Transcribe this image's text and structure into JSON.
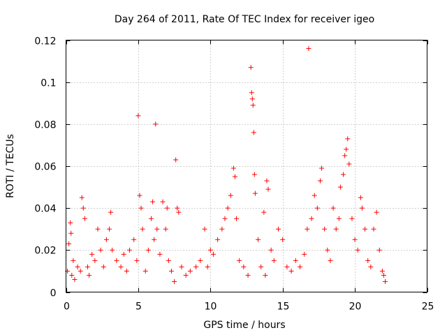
{
  "chart_data": {
    "type": "scatter",
    "title": "Day 264 of 2011, Rate Of TEC Index for receiver igeo",
    "xlabel": "GPS time / hours",
    "ylabel": "ROTI / TECUs",
    "xlim": [
      0,
      25
    ],
    "ylim": [
      0,
      0.12
    ],
    "x_ticks": [
      0,
      5,
      10,
      15,
      20,
      25
    ],
    "x_tick_labels": [
      "0",
      "5",
      "10",
      "15",
      "20",
      "25"
    ],
    "y_ticks": [
      0,
      0.02,
      0.04,
      0.06,
      0.08,
      0.1,
      0.12
    ],
    "y_tick_labels": [
      "0",
      "0.02",
      "0.04",
      "0.06",
      "0.08",
      "0.1",
      "0.12"
    ],
    "grid": true,
    "marker": "+",
    "marker_color": "#ff0000",
    "series": [
      {
        "name": "ROTI",
        "points": [
          [
            0.1,
            0.01
          ],
          [
            0.2,
            0.023
          ],
          [
            0.3,
            0.033
          ],
          [
            0.35,
            0.028
          ],
          [
            0.4,
            0.008
          ],
          [
            0.5,
            0.015
          ],
          [
            0.6,
            0.006
          ],
          [
            0.8,
            0.012
          ],
          [
            1.0,
            0.01
          ],
          [
            1.1,
            0.045
          ],
          [
            1.2,
            0.04
          ],
          [
            1.3,
            0.035
          ],
          [
            1.5,
            0.012
          ],
          [
            1.6,
            0.008
          ],
          [
            1.8,
            0.018
          ],
          [
            2.0,
            0.015
          ],
          [
            2.2,
            0.03
          ],
          [
            2.4,
            0.02
          ],
          [
            2.6,
            0.012
          ],
          [
            2.8,
            0.025
          ],
          [
            3.0,
            0.03
          ],
          [
            3.1,
            0.038
          ],
          [
            3.2,
            0.02
          ],
          [
            3.5,
            0.015
          ],
          [
            3.8,
            0.012
          ],
          [
            4.0,
            0.018
          ],
          [
            4.2,
            0.01
          ],
          [
            4.4,
            0.02
          ],
          [
            4.7,
            0.025
          ],
          [
            4.9,
            0.015
          ],
          [
            5.0,
            0.084
          ],
          [
            5.1,
            0.046
          ],
          [
            5.2,
            0.04
          ],
          [
            5.3,
            0.03
          ],
          [
            5.5,
            0.01
          ],
          [
            5.7,
            0.02
          ],
          [
            5.9,
            0.035
          ],
          [
            6.0,
            0.043
          ],
          [
            6.1,
            0.025
          ],
          [
            6.2,
            0.08
          ],
          [
            6.3,
            0.03
          ],
          [
            6.5,
            0.018
          ],
          [
            6.7,
            0.043
          ],
          [
            6.9,
            0.03
          ],
          [
            7.0,
            0.04
          ],
          [
            7.1,
            0.015
          ],
          [
            7.3,
            0.01
          ],
          [
            7.5,
            0.005
          ],
          [
            7.6,
            0.063
          ],
          [
            7.7,
            0.04
          ],
          [
            7.8,
            0.038
          ],
          [
            8.0,
            0.012
          ],
          [
            8.3,
            0.008
          ],
          [
            8.6,
            0.01
          ],
          [
            9.0,
            0.012
          ],
          [
            9.3,
            0.015
          ],
          [
            9.6,
            0.03
          ],
          [
            9.8,
            0.012
          ],
          [
            10.0,
            0.02
          ],
          [
            10.2,
            0.018
          ],
          [
            10.5,
            0.025
          ],
          [
            10.8,
            0.03
          ],
          [
            11.0,
            0.035
          ],
          [
            11.2,
            0.04
          ],
          [
            11.4,
            0.046
          ],
          [
            11.6,
            0.059
          ],
          [
            11.7,
            0.055
          ],
          [
            11.8,
            0.035
          ],
          [
            12.0,
            0.015
          ],
          [
            12.3,
            0.012
          ],
          [
            12.6,
            0.008
          ],
          [
            12.8,
            0.107
          ],
          [
            12.85,
            0.095
          ],
          [
            12.9,
            0.092
          ],
          [
            12.95,
            0.089
          ],
          [
            13.0,
            0.076
          ],
          [
            13.05,
            0.056
          ],
          [
            13.1,
            0.047
          ],
          [
            13.3,
            0.025
          ],
          [
            13.5,
            0.012
          ],
          [
            13.7,
            0.038
          ],
          [
            13.8,
            0.008
          ],
          [
            13.9,
            0.053
          ],
          [
            14.0,
            0.049
          ],
          [
            14.2,
            0.02
          ],
          [
            14.4,
            0.015
          ],
          [
            14.7,
            0.03
          ],
          [
            15.0,
            0.025
          ],
          [
            15.3,
            0.012
          ],
          [
            15.6,
            0.01
          ],
          [
            15.9,
            0.015
          ],
          [
            16.2,
            0.012
          ],
          [
            16.5,
            0.018
          ],
          [
            16.7,
            0.03
          ],
          [
            16.8,
            0.116
          ],
          [
            17.0,
            0.035
          ],
          [
            17.2,
            0.046
          ],
          [
            17.4,
            0.04
          ],
          [
            17.6,
            0.053
          ],
          [
            17.7,
            0.059
          ],
          [
            17.9,
            0.03
          ],
          [
            18.1,
            0.02
          ],
          [
            18.3,
            0.015
          ],
          [
            18.5,
            0.04
          ],
          [
            18.7,
            0.03
          ],
          [
            18.9,
            0.035
          ],
          [
            19.0,
            0.05
          ],
          [
            19.2,
            0.056
          ],
          [
            19.3,
            0.065
          ],
          [
            19.4,
            0.068
          ],
          [
            19.5,
            0.073
          ],
          [
            19.6,
            0.061
          ],
          [
            19.8,
            0.035
          ],
          [
            20.0,
            0.025
          ],
          [
            20.2,
            0.02
          ],
          [
            20.4,
            0.045
          ],
          [
            20.5,
            0.04
          ],
          [
            20.7,
            0.03
          ],
          [
            20.9,
            0.015
          ],
          [
            21.1,
            0.012
          ],
          [
            21.3,
            0.03
          ],
          [
            21.5,
            0.038
          ],
          [
            21.7,
            0.02
          ],
          [
            21.9,
            0.01
          ],
          [
            22.0,
            0.008
          ],
          [
            22.1,
            0.005
          ]
        ]
      }
    ]
  }
}
